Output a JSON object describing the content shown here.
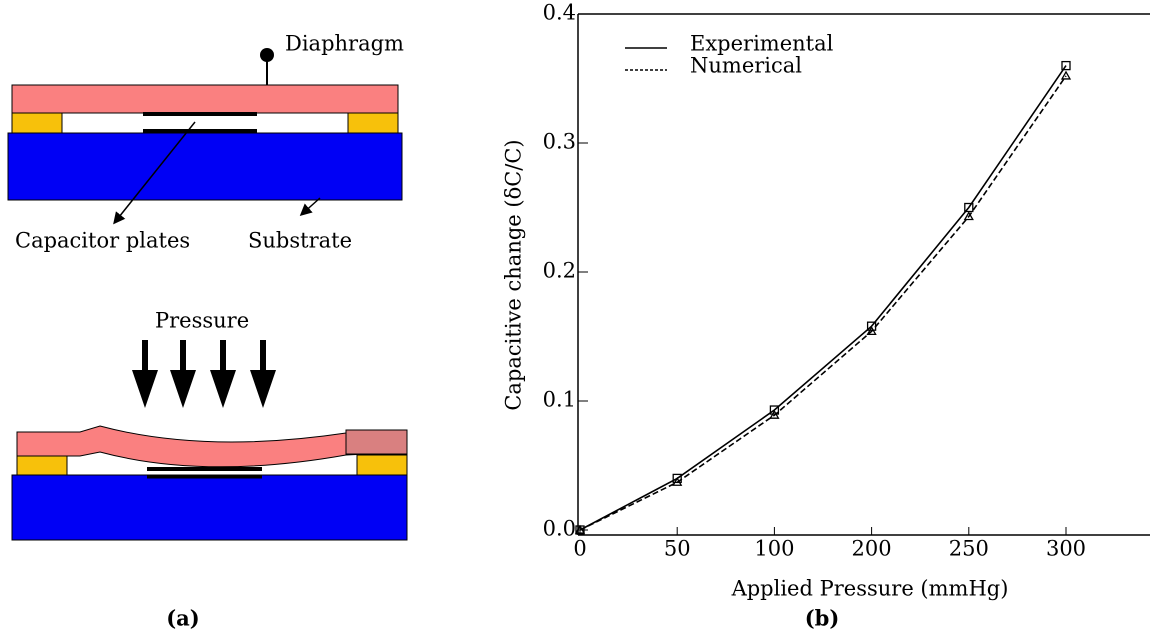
{
  "chart_data": {
    "type": "line",
    "x_label": "Applied Pressure (mmHg)",
    "y_label": "Capacitive change (δC/C)",
    "categories": [
      "0",
      "50",
      "100",
      "200",
      "250",
      "300"
    ],
    "series": [
      {
        "name": "Experimental",
        "color": "#000000",
        "dash": "solid",
        "marker": "square",
        "values": [
          0,
          0.04,
          0.093,
          0.158,
          0.25,
          0.36
        ]
      },
      {
        "name": "Numerical",
        "color": "#000000",
        "dash": "dashed",
        "marker": "triangle",
        "values": [
          0,
          0.037,
          0.089,
          0.154,
          0.243,
          0.352
        ]
      }
    ],
    "ylim": [
      0,
      0.4
    ],
    "yticks": [
      {
        "value": 0,
        "label": "0.0"
      },
      0.1,
      0.2,
      0.3,
      0.4
    ],
    "legend": "top-left"
  },
  "diagram": {
    "diaphragm": "Diaphragm",
    "capacitor_plates": "Capacitor plates",
    "substrate": "Substrate",
    "pressure": "Pressure"
  },
  "captions": [
    "(a)",
    "(b)"
  ]
}
